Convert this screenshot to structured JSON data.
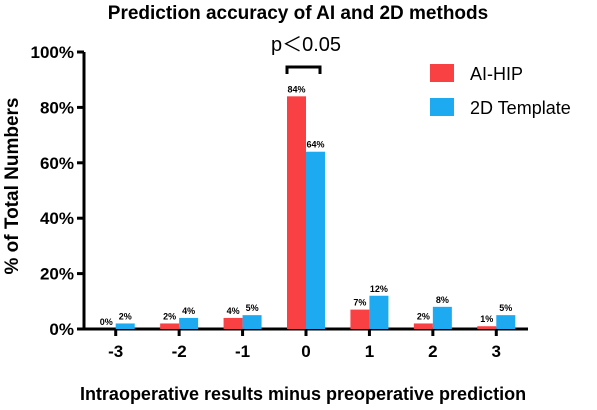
{
  "chart_data": {
    "type": "bar",
    "title": "Prediction accuracy of AI and 2D methods",
    "xlabel": "Intraoperative results minus preoperative prediction",
    "ylabel": "% of Total Numbers",
    "categories": [
      "-3",
      "-2",
      "-1",
      "0",
      "1",
      "2",
      "3"
    ],
    "ylim": [
      0,
      100
    ],
    "yticks": [
      "0%",
      "20%",
      "40%",
      "60%",
      "80%",
      "100%"
    ],
    "series": [
      {
        "name": "AI-HIP",
        "color": "#f94144",
        "values": [
          0,
          2,
          4,
          84,
          7,
          2,
          1
        ],
        "labels": [
          "0%",
          "2%",
          "4%",
          "84%",
          "7%",
          "2%",
          "1%"
        ]
      },
      {
        "name": "2D Template",
        "color": "#1eaaf1",
        "values": [
          2,
          4,
          5,
          64,
          12,
          8,
          5
        ],
        "labels": [
          "2%",
          "4%",
          "5%",
          "64%",
          "12%",
          "8%",
          "5%"
        ]
      }
    ],
    "annotation": "p＜0.05",
    "legend_position": "top-right",
    "grid": false
  }
}
